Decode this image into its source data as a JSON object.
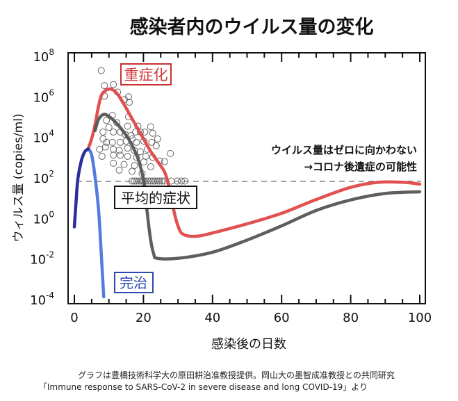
{
  "chart_data": {
    "type": "line",
    "title": "感染者内のウイルス量の変化",
    "xlabel": "感染後の日数",
    "ylabel": "ウィルス量 (copies/ml)",
    "x_range": [
      0,
      100
    ],
    "y_scale": "log10",
    "y_range_log10": [
      -4,
      8
    ],
    "x_ticks": [
      "0",
      "20",
      "40",
      "60",
      "80",
      "100"
    ],
    "y_ticks": [
      {
        "base": "10",
        "exp": "8"
      },
      {
        "base": "10",
        "exp": "6"
      },
      {
        "base": "10",
        "exp": "4"
      },
      {
        "base": "10",
        "exp": "2"
      },
      {
        "base": "10",
        "exp": "0"
      },
      {
        "base": "10",
        "exp": "-2"
      },
      {
        "base": "10",
        "exp": "-4"
      }
    ],
    "grid": false,
    "threshold_line_log10": 1.8,
    "series": [
      {
        "name": "重症化",
        "color": "#e04848",
        "points": [
          [
            4,
            3.4
          ],
          [
            5,
            3.9
          ],
          [
            6,
            4.6
          ],
          [
            7,
            5.5
          ],
          [
            8,
            6.1
          ],
          [
            10,
            6.35
          ],
          [
            12,
            6.2
          ],
          [
            14,
            5.7
          ],
          [
            16,
            5.1
          ],
          [
            18,
            4.5
          ],
          [
            20,
            3.9
          ],
          [
            22,
            3.3
          ],
          [
            24,
            2.8
          ],
          [
            26,
            2.3
          ],
          [
            27,
            1.8
          ],
          [
            28,
            1.1
          ],
          [
            29,
            0.2
          ],
          [
            30,
            -0.4
          ],
          [
            31,
            -0.75
          ],
          [
            33,
            -0.9
          ],
          [
            36,
            -0.9
          ],
          [
            40,
            -0.75
          ],
          [
            50,
            -0.3
          ],
          [
            60,
            0.22
          ],
          [
            70,
            0.9
          ],
          [
            80,
            1.5
          ],
          [
            88,
            1.75
          ],
          [
            95,
            1.75
          ],
          [
            100,
            1.66
          ]
        ]
      },
      {
        "name": "平均的症状",
        "color": "#555555",
        "points": [
          [
            6,
            4.3
          ],
          [
            7,
            4.85
          ],
          [
            8.5,
            5.1
          ],
          [
            10,
            5.0
          ],
          [
            12,
            4.7
          ],
          [
            14,
            4.3
          ],
          [
            16,
            3.8
          ],
          [
            18,
            3.1
          ],
          [
            19,
            2.6
          ],
          [
            20,
            1.9
          ],
          [
            20.5,
            1.2
          ],
          [
            21,
            0.4
          ],
          [
            22,
            -1.0
          ],
          [
            23,
            -1.8
          ],
          [
            24,
            -2.0
          ],
          [
            30,
            -2.0
          ],
          [
            40,
            -1.7
          ],
          [
            50,
            -1.1
          ],
          [
            60,
            -0.4
          ],
          [
            70,
            0.36
          ],
          [
            80,
            0.88
          ],
          [
            90,
            1.2
          ],
          [
            100,
            1.28
          ]
        ]
      },
      {
        "name": "完治",
        "color": "#4a74dc",
        "rise_color": "#2b2f9e",
        "rise_points": [
          [
            0,
            -0.45
          ],
          [
            0.5,
            0.8
          ],
          [
            1,
            1.9
          ],
          [
            2,
            2.8
          ],
          [
            3,
            3.25
          ],
          [
            4,
            3.4
          ]
        ],
        "points": [
          [
            4,
            3.4
          ],
          [
            5,
            3.1
          ],
          [
            6,
            2.0
          ],
          [
            7,
            0.4
          ],
          [
            7.7,
            -1.5
          ],
          [
            8.2,
            -3.0
          ],
          [
            8.5,
            -3.9
          ]
        ]
      }
    ],
    "scatter": [
      [
        7.8,
        7.26
      ],
      [
        8.7,
        6.52
      ],
      [
        11.3,
        6.57
      ],
      [
        8.7,
        6.0
      ],
      [
        12.5,
        6.2
      ],
      [
        14.5,
        5.83
      ],
      [
        15.7,
        5.97
      ],
      [
        15.9,
        5.7
      ],
      [
        11.0,
        5.05
      ],
      [
        15.7,
        4.98
      ],
      [
        9.3,
        4.8
      ],
      [
        12.3,
        4.69
      ],
      [
        15.4,
        4.52
      ],
      [
        18.4,
        4.52
      ],
      [
        22.1,
        4.49
      ],
      [
        8.3,
        4.23
      ],
      [
        10.0,
        4.46
      ],
      [
        11.3,
        4.23
      ],
      [
        13.3,
        4.23
      ],
      [
        14.7,
        4.12
      ],
      [
        16.4,
        4.06
      ],
      [
        17.7,
        4.23
      ],
      [
        19.1,
        4.23
      ],
      [
        20.4,
        4.23
      ],
      [
        22.7,
        4.17
      ],
      [
        24.1,
        3.89
      ],
      [
        8.3,
        3.89
      ],
      [
        9.3,
        3.72
      ],
      [
        11.0,
        3.72
      ],
      [
        13.3,
        3.72
      ],
      [
        15.0,
        3.78
      ],
      [
        16.7,
        3.89
      ],
      [
        18.0,
        3.72
      ],
      [
        20.1,
        3.78
      ],
      [
        22.4,
        3.72
      ],
      [
        7.3,
        3.38
      ],
      [
        9.0,
        3.49
      ],
      [
        11.3,
        3.38
      ],
      [
        13.0,
        3.32
      ],
      [
        15.4,
        3.43
      ],
      [
        17.4,
        3.32
      ],
      [
        19.1,
        3.26
      ],
      [
        21.1,
        3.38
      ],
      [
        23.7,
        3.55
      ],
      [
        8.0,
        3.03
      ],
      [
        11.3,
        3.09
      ],
      [
        13.3,
        3.09
      ],
      [
        15.4,
        3.03
      ],
      [
        18.0,
        2.98
      ],
      [
        20.7,
        3.03
      ],
      [
        22.7,
        2.98
      ],
      [
        27.8,
        3.17
      ],
      [
        11.3,
        2.69
      ],
      [
        14.4,
        2.63
      ],
      [
        17.4,
        2.58
      ],
      [
        20.1,
        2.75
      ],
      [
        22.1,
        2.52
      ],
      [
        24.7,
        2.8
      ],
      [
        26.1,
        2.77
      ],
      [
        13.0,
        2.35
      ],
      [
        16.7,
        2.29
      ],
      [
        19.6,
        2.18
      ],
      [
        16.7,
        1.81
      ],
      [
        17.4,
        1.81
      ],
      [
        18.0,
        1.81
      ],
      [
        18.7,
        1.81
      ],
      [
        19.4,
        1.81
      ],
      [
        20.0,
        1.81
      ],
      [
        20.7,
        1.81
      ],
      [
        21.4,
        1.81
      ],
      [
        22.1,
        1.81
      ],
      [
        22.8,
        1.81
      ],
      [
        23.4,
        1.81
      ],
      [
        24.1,
        1.81
      ],
      [
        24.7,
        1.81
      ],
      [
        25.4,
        1.81
      ],
      [
        26.1,
        1.81
      ],
      [
        28.1,
        1.81
      ],
      [
        29.8,
        1.81
      ],
      [
        31.0,
        1.81
      ],
      [
        32.0,
        1.81
      ]
    ],
    "annotations": {
      "severe": "重症化",
      "average": "平均的症状",
      "recovered": "完治",
      "note_line1": "ウイルス量はゼロに向かわない",
      "note_line2": "→コロナ後遺症の可能性"
    }
  },
  "caption": {
    "line1": "グラフは豊橋技術科学大の原田耕治准教授提供。岡山大の墨智成准教授との共同研究",
    "line2": "「Immune response to SARS-CoV-2 in severe disease and long COVID-19」より"
  }
}
